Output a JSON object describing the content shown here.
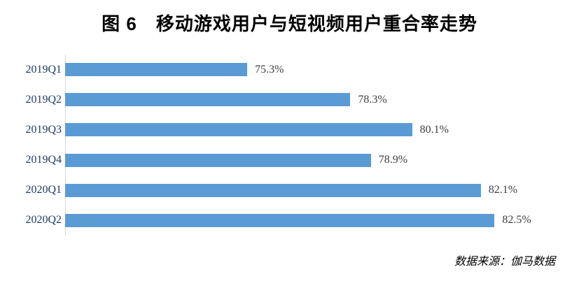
{
  "title": "图 6　移动游戏用户与短视频用户重合率走势",
  "source_note": "数据来源：伽马数据",
  "chart_data": {
    "type": "bar",
    "orientation": "horizontal",
    "title": "图 6　移动游戏用户与短视频用户重合率走势",
    "categories": [
      "2019Q1",
      "2019Q2",
      "2019Q3",
      "2019Q4",
      "2020Q1",
      "2020Q2"
    ],
    "values": [
      75.3,
      78.3,
      80.1,
      78.9,
      82.1,
      82.5
    ],
    "value_labels": [
      "75.3%",
      "78.3%",
      "80.1%",
      "78.9%",
      "82.1%",
      "82.5%"
    ],
    "xlabel": "",
    "ylabel": "",
    "xlim": [
      70,
      84
    ],
    "grid": false,
    "legend": "none",
    "bar_color": "#5B9BD5",
    "category_label_color": "#1F3B66",
    "value_label_color": "#404040",
    "axis_line_color": "#D9D9D9",
    "source": "数据来源：伽马数据"
  }
}
